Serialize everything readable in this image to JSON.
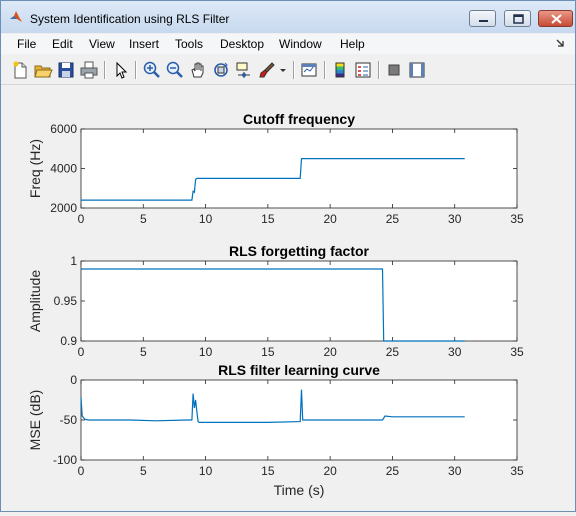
{
  "window": {
    "title": "System Identification using RLS Filter",
    "accent_color": "#0072bd"
  },
  "menu": {
    "items": [
      {
        "name": "menu-file",
        "label": "File"
      },
      {
        "name": "menu-edit",
        "label": "Edit"
      },
      {
        "name": "menu-view",
        "label": "View"
      },
      {
        "name": "menu-insert",
        "label": "Insert"
      },
      {
        "name": "menu-tools",
        "label": "Tools"
      },
      {
        "name": "menu-desktop",
        "label": "Desktop"
      },
      {
        "name": "menu-window",
        "label": "Window"
      },
      {
        "name": "menu-help",
        "label": "Help"
      }
    ]
  },
  "toolbar": {
    "icons": [
      "new-figure-icon",
      "open-file-icon",
      "save-icon",
      "print-icon",
      "edit-plot-icon",
      "zoom-in-icon",
      "zoom-out-icon",
      "pan-icon",
      "rotate-3d-icon",
      "data-cursor-icon",
      "brush-icon",
      "link-plot-icon",
      "insert-colorbar-icon",
      "insert-legend-icon",
      "hide-plot-tools-icon",
      "show-plot-tools-icon"
    ]
  },
  "chart_data": [
    {
      "type": "line",
      "title": "Cutoff frequency",
      "xlabel": "",
      "ylabel": "Freq (Hz)",
      "xlim": [
        0,
        35
      ],
      "ylim": [
        2000,
        6000
      ],
      "xticks": [
        "0",
        "5",
        "10",
        "15",
        "20",
        "25",
        "30",
        "35"
      ],
      "yticks": [
        "2000",
        "4000",
        "6000"
      ],
      "grid": false,
      "color": "#0072bd",
      "series": [
        {
          "x": [
            0,
            8.9,
            9.0,
            9.1,
            9.2,
            9.3,
            17.6,
            17.7,
            30.8
          ],
          "y": [
            2400,
            2400,
            2850,
            2800,
            3450,
            3500,
            3500,
            4500,
            4500
          ]
        }
      ]
    },
    {
      "type": "line",
      "title": "RLS forgetting factor",
      "xlabel": "",
      "ylabel": "Amplitude",
      "xlim": [
        0,
        35
      ],
      "ylim": [
        0.9,
        1
      ],
      "xticks": [
        "0",
        "5",
        "10",
        "15",
        "20",
        "25",
        "30",
        "35"
      ],
      "yticks": [
        "0.9",
        "0.95",
        "1"
      ],
      "grid": false,
      "color": "#0072bd",
      "series": [
        {
          "x": [
            0,
            24.2,
            24.3,
            30.8
          ],
          "y": [
            0.99,
            0.99,
            0.9,
            0.9
          ]
        }
      ]
    },
    {
      "type": "line",
      "title": "RLS filter learning curve",
      "xlabel": "Time (s)",
      "ylabel": "MSE (dB)",
      "xlim": [
        0,
        35
      ],
      "ylim": [
        -100,
        0
      ],
      "xticks": [
        "0",
        "5",
        "10",
        "15",
        "20",
        "25",
        "30",
        "35"
      ],
      "yticks": [
        "-100",
        "-50",
        "0"
      ],
      "grid": false,
      "color": "#0072bd",
      "series": [
        {
          "x": [
            0,
            0.1,
            0.3,
            0.6,
            2,
            4,
            6,
            8.5,
            8.9,
            9.0,
            9.1,
            9.2,
            9.3,
            9.4,
            9.5,
            10,
            12,
            15,
            17.6,
            17.7,
            17.8,
            18,
            20,
            22,
            24.2,
            24.4,
            25,
            27,
            30.8
          ],
          "y": [
            -22,
            -45,
            -49,
            -50,
            -50,
            -50,
            -51,
            -50,
            -50,
            -17,
            -35,
            -25,
            -40,
            -52,
            -53,
            -53,
            -53,
            -53,
            -52,
            -12,
            -50,
            -50,
            -50,
            -50,
            -50,
            -45,
            -46,
            -46,
            -46
          ]
        }
      ]
    }
  ]
}
